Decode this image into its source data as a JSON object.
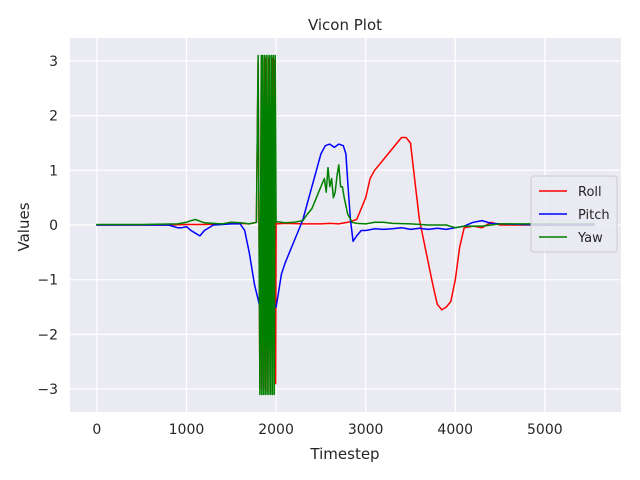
{
  "chart_data": {
    "type": "line",
    "title": "Vicon Plot",
    "xlabel": "Timestep",
    "ylabel": "Values",
    "xlim": [
      -300,
      5850
    ],
    "ylim": [
      -3.42,
      3.42
    ],
    "xticks": [
      0,
      1000,
      2000,
      3000,
      4000,
      5000
    ],
    "yticks": [
      -3,
      -2,
      -1,
      0,
      1,
      2,
      3
    ],
    "ytick_labels": [
      "−3",
      "−2",
      "−1",
      "0",
      "1",
      "2",
      "3"
    ],
    "grid": true,
    "legend_position": "center-right",
    "background_color": "#eaeaf2",
    "series": [
      {
        "name": "Roll",
        "color": "#ff0000",
        "x": [
          0,
          500,
          800,
          1000,
          1200,
          1400,
          1600,
          1700,
          1780,
          1800,
          1820,
          1835,
          1840,
          1850,
          1860,
          1880,
          1900,
          1920,
          1940,
          1960,
          1980,
          1985,
          1990,
          1995,
          2000,
          2010,
          2100,
          2300,
          2500,
          2600,
          2700,
          2800,
          2900,
          3000,
          3050,
          3100,
          3150,
          3200,
          3250,
          3300,
          3350,
          3400,
          3450,
          3500,
          3550,
          3600,
          3650,
          3700,
          3750,
          3800,
          3850,
          3900,
          3950,
          4000,
          4050,
          4100,
          4200,
          4300,
          4400,
          4500,
          5000,
          5550
        ],
        "y": [
          0,
          0,
          0,
          0.01,
          0.01,
          0.02,
          0.03,
          0.02,
          0.05,
          3.0,
          -3.0,
          3.0,
          -3.0,
          3.0,
          -3.0,
          3.05,
          -3.05,
          3.05,
          -3.05,
          3.05,
          -2.9,
          3.02,
          3.0,
          -2.9,
          0.03,
          0.02,
          0.03,
          0.02,
          0.02,
          0.03,
          0.02,
          0.05,
          0.1,
          0.5,
          0.85,
          1.0,
          1.1,
          1.2,
          1.3,
          1.4,
          1.5,
          1.6,
          1.6,
          1.5,
          0.8,
          0.1,
          -0.3,
          -0.7,
          -1.1,
          -1.45,
          -1.55,
          -1.5,
          -1.4,
          -1.0,
          -0.4,
          -0.05,
          -0.02,
          -0.05,
          0.05,
          0.0,
          0.0,
          0.0
        ]
      },
      {
        "name": "Pitch",
        "color": "#0000ff",
        "x": [
          0,
          500,
          800,
          900,
          950,
          1000,
          1050,
          1100,
          1150,
          1200,
          1250,
          1300,
          1400,
          1500,
          1600,
          1650,
          1700,
          1730,
          1760,
          1790,
          1820,
          1840,
          1860,
          1880,
          1900,
          1920,
          1940,
          1960,
          1980,
          2000,
          2030,
          2060,
          2100,
          2150,
          2200,
          2250,
          2300,
          2350,
          2400,
          2450,
          2500,
          2550,
          2600,
          2650,
          2700,
          2750,
          2780,
          2800,
          2830,
          2860,
          2900,
          2950,
          3000,
          3100,
          3200,
          3300,
          3400,
          3500,
          3600,
          3700,
          3800,
          3900,
          4000,
          4100,
          4200,
          4300,
          4400,
          4500,
          5000,
          5550
        ],
        "y": [
          0,
          0,
          0,
          -0.05,
          -0.05,
          -0.03,
          -0.1,
          -0.15,
          -0.2,
          -0.1,
          -0.05,
          0.0,
          0.01,
          0.02,
          0.02,
          -0.1,
          -0.5,
          -0.8,
          -1.1,
          -1.3,
          -1.5,
          -1.55,
          -1.5,
          -1.5,
          -1.52,
          -1.5,
          -1.52,
          -1.55,
          -1.5,
          -1.5,
          -1.2,
          -0.9,
          -0.7,
          -0.5,
          -0.3,
          -0.1,
          0.1,
          0.4,
          0.7,
          1.0,
          1.3,
          1.45,
          1.48,
          1.42,
          1.48,
          1.45,
          1.3,
          0.8,
          0.1,
          -0.3,
          -0.2,
          -0.1,
          -0.1,
          -0.07,
          -0.08,
          -0.07,
          -0.05,
          -0.08,
          -0.06,
          -0.08,
          -0.06,
          -0.08,
          -0.05,
          -0.02,
          0.05,
          0.08,
          0.03,
          0.02,
          0.0,
          0.0
        ]
      },
      {
        "name": "Yaw",
        "color": "#008000",
        "x": [
          0,
          500,
          900,
          1000,
          1050,
          1100,
          1150,
          1200,
          1300,
          1400,
          1500,
          1600,
          1700,
          1780,
          1800,
          1820,
          1835,
          1840,
          1850,
          1860,
          1870,
          1880,
          1890,
          1900,
          1910,
          1920,
          1930,
          1940,
          1950,
          1960,
          1970,
          1980,
          1990,
          2000,
          2010,
          2100,
          2200,
          2300,
          2350,
          2400,
          2450,
          2500,
          2540,
          2560,
          2580,
          2600,
          2620,
          2640,
          2660,
          2680,
          2700,
          2720,
          2740,
          2760,
          2800,
          2850,
          2900,
          3000,
          3100,
          3200,
          3300,
          3500,
          3700,
          3900,
          4000,
          4100,
          4300,
          4500,
          5000,
          5550
        ],
        "y": [
          0.01,
          0.01,
          0.02,
          0.05,
          0.08,
          0.1,
          0.07,
          0.04,
          0.03,
          0.02,
          0.05,
          0.04,
          0.02,
          0.05,
          3.1,
          -3.1,
          3.1,
          -3.1,
          3.1,
          -3.1,
          3.1,
          -3.1,
          3.1,
          -3.1,
          3.1,
          -3.1,
          3.1,
          -3.1,
          3.1,
          -3.1,
          3.1,
          -3.1,
          3.1,
          0.05,
          0.06,
          0.04,
          0.05,
          0.08,
          0.2,
          0.3,
          0.5,
          0.7,
          0.85,
          0.6,
          1.05,
          0.7,
          0.85,
          0.5,
          0.6,
          0.9,
          1.1,
          0.7,
          0.7,
          0.5,
          0.2,
          0.05,
          0.03,
          0.02,
          0.05,
          0.05,
          0.03,
          0.02,
          0.0,
          0.0,
          -0.05,
          -0.02,
          -0.02,
          0.02,
          0.02,
          0.02
        ]
      }
    ]
  }
}
